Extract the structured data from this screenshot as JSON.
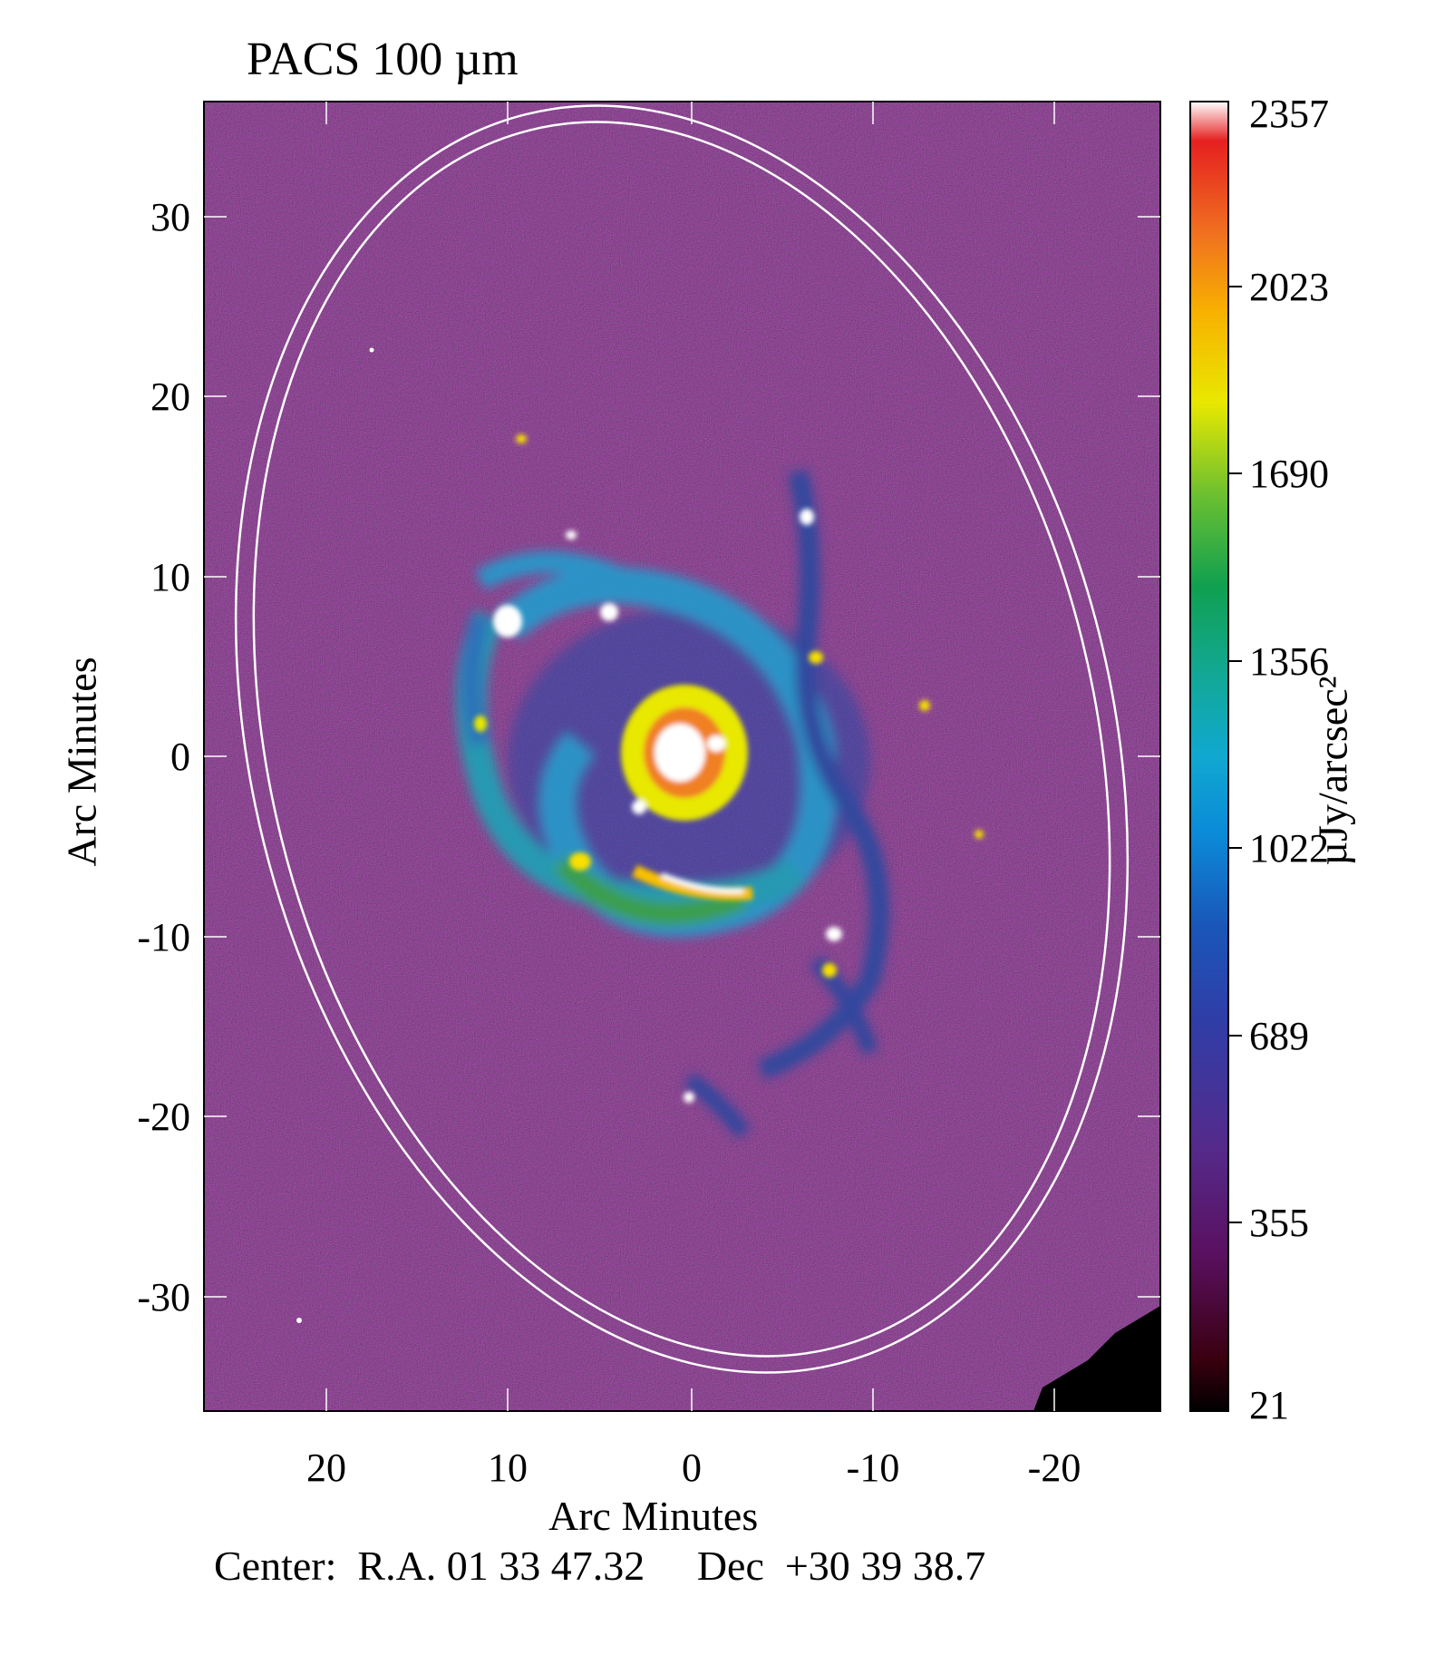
{
  "figure": {
    "title": "PACS 100 µm",
    "x_axis_label": "Arc Minutes",
    "y_axis_label": "Arc Minutes",
    "center_prefix": "Center:",
    "center_ra": "R.A. 01 33 47.32",
    "center_dec": "Dec  +30 39 38.7",
    "y_ticks": [
      "30",
      "20",
      "10",
      "0",
      "-10",
      "-20",
      "-30"
    ],
    "x_ticks": [
      "20",
      "10",
      "0",
      "-10",
      "-20"
    ],
    "colorbar": {
      "label": "µJy/arcsec²",
      "ticks": [
        "2357",
        "2023",
        "1690",
        "1356",
        "1022",
        "689",
        "355",
        "21"
      ]
    },
    "colors": {
      "background_map": "#2a0a2a",
      "ellipse": "#ffffff"
    }
  }
}
